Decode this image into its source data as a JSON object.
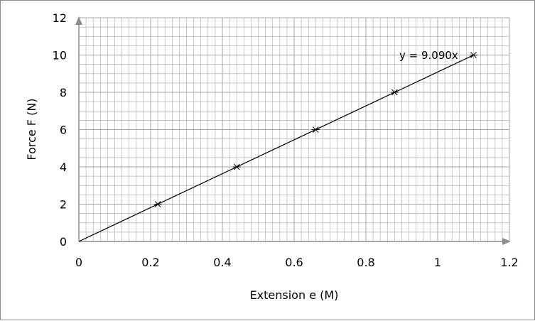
{
  "chart_data": {
    "type": "scatter",
    "xlabel": "Extension e (M)",
    "ylabel": "Force F (N)",
    "xlim": [
      0,
      1.2
    ],
    "ylim": [
      0,
      12
    ],
    "x_ticks": [
      "0",
      "0.2",
      "0.4",
      "0.6",
      "0.8",
      "1",
      "1.2"
    ],
    "y_ticks": [
      "0",
      "2",
      "4",
      "6",
      "8",
      "10",
      "12"
    ],
    "grid": true,
    "marker": "asterisk",
    "series": [
      {
        "x": [
          0.22,
          0.44,
          0.66,
          0.88,
          1.1
        ],
        "y": [
          2,
          4,
          6,
          8,
          10
        ]
      }
    ],
    "trendline": {
      "type": "linear",
      "slope": 9.09,
      "intercept": 0,
      "x_range": [
        0,
        1.1
      ],
      "equation_label": "y = 9.090x"
    },
    "colors": {
      "grid": "#a6a6a6",
      "axis": "#8c8c8c",
      "marker": "#000000",
      "line": "#000000"
    }
  }
}
